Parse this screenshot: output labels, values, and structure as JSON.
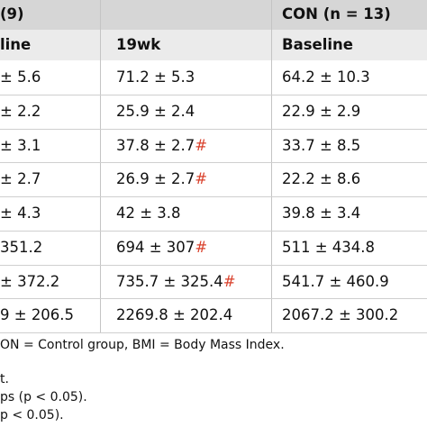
{
  "header": {
    "group1_label": "(9)",
    "con_label": "CON (n = 13)",
    "col1": "line",
    "col2": "19wk",
    "col3": "Baseline"
  },
  "rows": [
    {
      "c1": "± 5.6",
      "c2": "71.2 ± 5.3",
      "c2_mark": "",
      "c3": "64.2 ± 10.3"
    },
    {
      "c1": "± 2.2",
      "c2": "25.9 ± 2.4",
      "c2_mark": "",
      "c3": "22.9 ± 2.9"
    },
    {
      "c1": "± 3.1",
      "c2": "37.8 ± 2.7",
      "c2_mark": "#",
      "c3": "33.7 ± 8.5"
    },
    {
      "c1": "± 2.7",
      "c2": "26.9 ± 2.7",
      "c2_mark": "#",
      "c3": "22.2 ± 8.6"
    },
    {
      "c1": "± 4.3",
      "c2": "42 ± 3.8",
      "c2_mark": "",
      "c3": "39.8 ± 3.4"
    },
    {
      "c1": "351.2",
      "c2": "694 ± 307",
      "c2_mark": "#",
      "c3": "511 ± 434.8"
    },
    {
      "c1": "± 372.2",
      "c2": "735.7 ± 325.4",
      "c2_mark": "#",
      "c3": "541.7 ± 460.9"
    },
    {
      "c1": "9 ± 206.5",
      "c2": "2269.8 ± 202.4",
      "c2_mark": "",
      "c3": "2067.2 ± 300.2"
    }
  ],
  "footnotes": [
    "ON = Control group, BMI = Body Mass Index.",
    "t.",
    "ps (p < 0.05).",
    "p < 0.05)."
  ],
  "colors": {
    "header_band": "#d6d6d6",
    "subheader_band": "#ebebeb",
    "significance_mark": "#d9402b"
  }
}
